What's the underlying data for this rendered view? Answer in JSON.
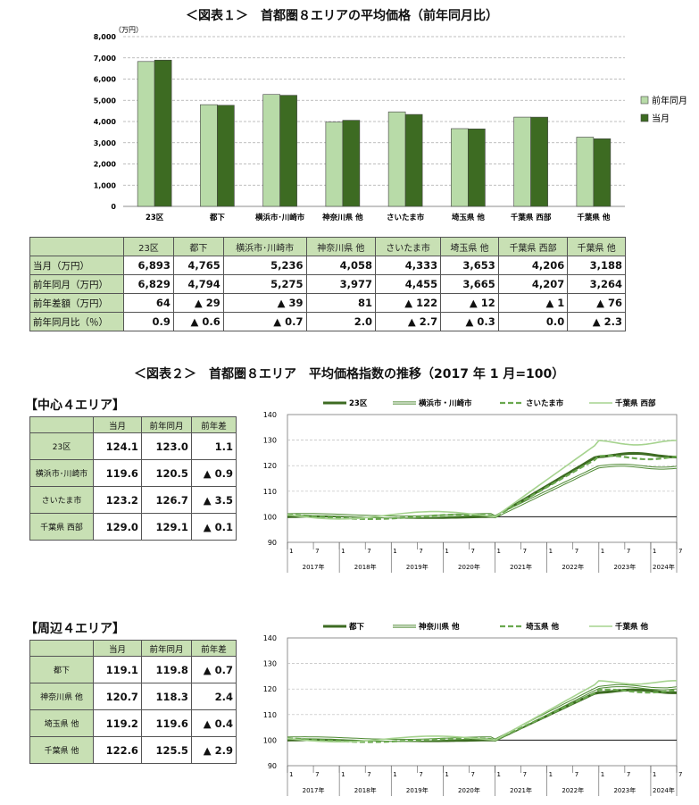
{
  "fig1": {
    "title": "＜図表１＞　首都圏８エリアの平均価格（前年同月比）",
    "unit": "（万円）",
    "legend": [
      "前年同月",
      "当月"
    ],
    "colors": {
      "prev": "#b8dba8",
      "curr": "#3d6b22"
    },
    "yticks": [
      "8,000",
      "7,000",
      "6,000",
      "5,000",
      "4,000",
      "3,000",
      "2,000",
      "1,000",
      "0"
    ]
  },
  "chart_data": [
    {
      "type": "bar",
      "categories": [
        "23区",
        "都下",
        "横浜市･川崎市",
        "神奈川県 他",
        "さいたま市",
        "埼玉県 他",
        "千葉県 西部",
        "千葉県 他"
      ],
      "series": [
        {
          "name": "前年同月",
          "values": [
            6829,
            4794,
            5275,
            3977,
            4455,
            3665,
            4207,
            3264
          ]
        },
        {
          "name": "当月",
          "values": [
            6893,
            4765,
            5236,
            4058,
            4333,
            3653,
            4206,
            3188
          ]
        }
      ],
      "ylim": [
        0,
        8000
      ],
      "legend": "right",
      "grid": true
    },
    {
      "type": "line",
      "x": [
        "2017-01",
        "2024-07"
      ],
      "ylim": [
        90,
        140
      ],
      "series": [
        {
          "name": "23区",
          "start": 100,
          "end": 124.1
        },
        {
          "name": "横浜市・川崎市",
          "start": 100,
          "end": 119.6
        },
        {
          "name": "さいたま市",
          "start": 100,
          "end": 123.2
        },
        {
          "name": "千葉県 西部",
          "start": 100,
          "end": 129.0
        }
      ]
    },
    {
      "type": "line",
      "x": [
        "2017-01",
        "2024-07"
      ],
      "ylim": [
        90,
        140
      ],
      "series": [
        {
          "name": "都下",
          "start": 100,
          "end": 119.1
        },
        {
          "name": "神奈川県 他",
          "start": 100,
          "end": 120.7
        },
        {
          "name": "埼玉県 他",
          "start": 100,
          "end": 119.2
        },
        {
          "name": "千葉県 他",
          "start": 100,
          "end": 122.6
        }
      ]
    }
  ],
  "table1": {
    "headers": [
      "23区",
      "都下",
      "横浜市･川崎市",
      "神奈川県 他",
      "さいたま市",
      "埼玉県 他",
      "千葉県 西部",
      "千葉県 他"
    ],
    "rows": [
      {
        "label": "当月（万円）",
        "values": [
          "6,893",
          "4,765",
          "5,236",
          "4,058",
          "4,333",
          "3,653",
          "4,206",
          "3,188"
        ]
      },
      {
        "label": "前年同月（万円）",
        "values": [
          "6,829",
          "4,794",
          "5,275",
          "3,977",
          "4,455",
          "3,665",
          "4,207",
          "3,264"
        ]
      },
      {
        "label": "前年差額（万円）",
        "values": [
          "64",
          "▲ 29",
          "▲ 39",
          "81",
          "▲ 122",
          "▲ 12",
          "▲ 1",
          "▲ 76"
        ]
      },
      {
        "label": "前年同月比（％）",
        "values": [
          "0.9",
          "▲ 0.6",
          "▲ 0.7",
          "2.0",
          "▲ 2.7",
          "▲ 0.3",
          "0.0",
          "▲ 2.3"
        ]
      }
    ]
  },
  "fig2": {
    "title": "＜図表２＞　首都圏８エリア　平均価格指数の推移（2017 年 1 月=100）",
    "yticks": [
      "140",
      "130",
      "120",
      "110",
      "100",
      "90"
    ],
    "month_ticks": [
      "1",
      "7"
    ],
    "years": [
      "2017年",
      "2018年",
      "2019年",
      "2020年",
      "2021年",
      "2022年",
      "2023年",
      "2024年"
    ],
    "center": {
      "heading": "【中心４エリア】",
      "headers": [
        "当月",
        "前年同月",
        "前年差"
      ],
      "rows": [
        {
          "label": "23区",
          "values": [
            "124.1",
            "123.0",
            "1.1"
          ]
        },
        {
          "label": "横浜市･川崎市",
          "values": [
            "119.6",
            "120.5",
            "▲ 0.9"
          ]
        },
        {
          "label": "さいたま市",
          "values": [
            "123.2",
            "126.7",
            "▲ 3.5"
          ]
        },
        {
          "label": "千葉県 西部",
          "values": [
            "129.0",
            "129.1",
            "▲ 0.1"
          ]
        }
      ],
      "legend": [
        "23区",
        "横浜市・川崎市",
        "さいたま市",
        "千葉県 西部"
      ]
    },
    "periph": {
      "heading": "【周辺４エリア】",
      "headers": [
        "当月",
        "前年同月",
        "前年差"
      ],
      "rows": [
        {
          "label": "都下",
          "values": [
            "119.1",
            "119.8",
            "▲ 0.7"
          ]
        },
        {
          "label": "神奈川県 他",
          "values": [
            "120.7",
            "118.3",
            "2.4"
          ]
        },
        {
          "label": "埼玉県 他",
          "values": [
            "119.2",
            "119.6",
            "▲ 0.4"
          ]
        },
        {
          "label": "千葉県 他",
          "values": [
            "122.6",
            "125.5",
            "▲ 2.9"
          ]
        }
      ],
      "legend": [
        "都下",
        "神奈川県 他",
        "埼玉県 他",
        "千葉県 他"
      ]
    }
  }
}
